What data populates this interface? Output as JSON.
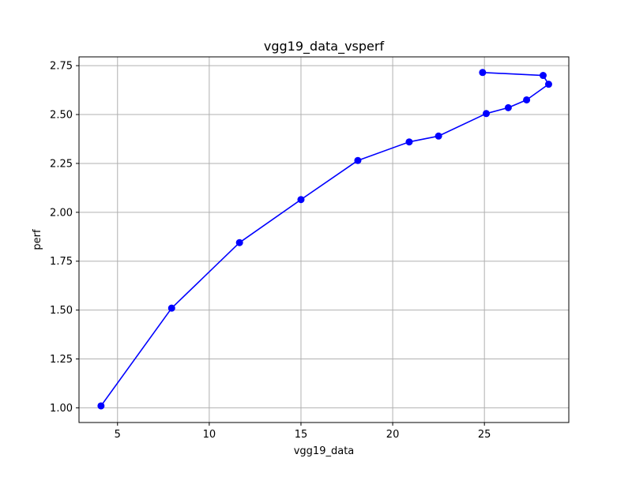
{
  "chart_data": {
    "type": "line",
    "title": "vgg19_data_vsperf",
    "xlabel": "vgg19_data",
    "ylabel": "perf",
    "xlim": [
      2.9,
      29.6
    ],
    "ylim": [
      0.925,
      2.795
    ],
    "x_ticks": [
      5,
      10,
      15,
      20,
      25
    ],
    "x_tick_labels": [
      "5",
      "10",
      "15",
      "20",
      "25"
    ],
    "y_ticks": [
      1.0,
      1.25,
      1.5,
      1.75,
      2.0,
      2.25,
      2.5,
      2.75
    ],
    "y_tick_labels": [
      "1.00",
      "1.25",
      "1.50",
      "1.75",
      "2.00",
      "2.25",
      "2.50",
      "2.75"
    ],
    "grid": true,
    "legend": "none",
    "series": [
      {
        "color": "#0000ff",
        "marker": "circle",
        "points": [
          {
            "x": 4.1,
            "y": 1.01
          },
          {
            "x": 7.95,
            "y": 1.51
          },
          {
            "x": 11.65,
            "y": 1.845
          },
          {
            "x": 15.0,
            "y": 2.065
          },
          {
            "x": 18.1,
            "y": 2.265
          },
          {
            "x": 20.9,
            "y": 2.36
          },
          {
            "x": 22.5,
            "y": 2.39
          },
          {
            "x": 25.1,
            "y": 2.505
          },
          {
            "x": 26.3,
            "y": 2.535
          },
          {
            "x": 27.3,
            "y": 2.575
          },
          {
            "x": 28.5,
            "y": 2.655
          },
          {
            "x": 28.2,
            "y": 2.7
          },
          {
            "x": 24.9,
            "y": 2.715
          }
        ]
      }
    ]
  }
}
